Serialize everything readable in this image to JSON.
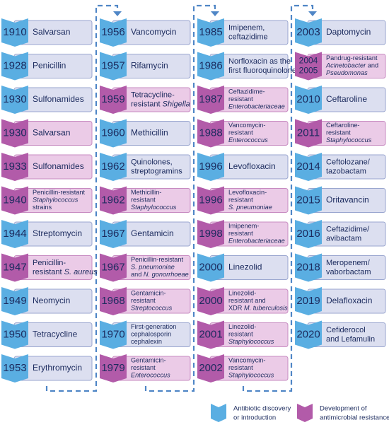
{
  "legend": [
    {
      "label": [
        "Antibiotic discovery",
        "or introduction"
      ],
      "color": "#5aaee2",
      "box_color": "#dcdff0",
      "box_stroke": "#9aa6cf"
    },
    {
      "label": [
        "Development of",
        "antimicrobial resistance"
      ],
      "color": "#b25ba9",
      "box_color": "#ebcbe7",
      "box_stroke": "#c78bc1"
    }
  ],
  "columns": [
    {
      "entries": [
        {
          "year": "1910",
          "kind": 0,
          "label": [
            [
              "Salvarsan"
            ]
          ]
        },
        {
          "year": "1928",
          "kind": 0,
          "label": [
            [
              "Penicillin"
            ]
          ]
        },
        {
          "year": "1930",
          "kind": 0,
          "label": [
            [
              "Sulfonamides"
            ]
          ]
        },
        {
          "year": "1930",
          "kind": 1,
          "label": [
            [
              "Salvarsan"
            ]
          ]
        },
        {
          "year": "1933",
          "kind": 1,
          "label": [
            [
              "Sulfonamides"
            ]
          ]
        },
        {
          "year": "1940",
          "kind": 1,
          "label": [
            [
              "Penicillin-resistant"
            ],
            [
              {
                "text": "Staphylococcus",
                "italic": true
              }
            ],
            [
              "strains"
            ]
          ]
        },
        {
          "year": "1944",
          "kind": 0,
          "label": [
            [
              "Streptomycin"
            ]
          ]
        },
        {
          "year": "1947",
          "kind": 1,
          "label": [
            [
              "Penicillin-"
            ],
            [
              "resistant ",
              {
                "text": "S. aureus",
                "italic": true
              }
            ]
          ]
        },
        {
          "year": "1949",
          "kind": 0,
          "label": [
            [
              "Neomycin"
            ]
          ]
        },
        {
          "year": "1950",
          "kind": 0,
          "label": [
            [
              "Tetracycline"
            ]
          ]
        },
        {
          "year": "1953",
          "kind": 0,
          "label": [
            [
              "Erythromycin"
            ]
          ]
        }
      ]
    },
    {
      "entries": [
        {
          "year": "1956",
          "kind": 0,
          "label": [
            [
              "Vancomycin"
            ]
          ]
        },
        {
          "year": "1957",
          "kind": 0,
          "label": [
            [
              "Rifamycin"
            ]
          ]
        },
        {
          "year": "1959",
          "kind": 1,
          "label": [
            [
              "Tetracycline-"
            ],
            [
              "resistant ",
              {
                "text": "Shigella",
                "italic": true
              }
            ]
          ]
        },
        {
          "year": "1960",
          "kind": 0,
          "label": [
            [
              "Methicillin"
            ]
          ]
        },
        {
          "year": "1962",
          "kind": 0,
          "label": [
            [
              "Quinolones,"
            ],
            [
              "streptogramins"
            ]
          ]
        },
        {
          "year": "1962",
          "kind": 1,
          "label": [
            [
              "Methicillin-"
            ],
            [
              "resistant"
            ],
            [
              {
                "text": "Staphylococcus",
                "italic": true
              }
            ]
          ]
        },
        {
          "year": "1967",
          "kind": 0,
          "label": [
            [
              "Gentamicin"
            ]
          ]
        },
        {
          "year": "1967",
          "kind": 1,
          "label": [
            [
              "Penicillin-resistant"
            ],
            [
              {
                "text": "S. pneumoniae",
                "italic": true
              }
            ],
            [
              "and ",
              {
                "text": "N. gonorrhoeae",
                "italic": true
              }
            ]
          ]
        },
        {
          "year": "1968",
          "kind": 1,
          "label": [
            [
              "Gentamicin-"
            ],
            [
              "resistant"
            ],
            [
              {
                "text": "Streptococcus",
                "italic": true
              }
            ]
          ]
        },
        {
          "year": "1970",
          "kind": 0,
          "label": [
            [
              "First-generation"
            ],
            [
              "cephalosporin"
            ],
            [
              "cephalexin"
            ]
          ]
        },
        {
          "year": "1979",
          "kind": 1,
          "label": [
            [
              "Gentamicin-"
            ],
            [
              "resistant"
            ],
            [
              {
                "text": "Enterococcus",
                "italic": true
              }
            ]
          ]
        }
      ]
    },
    {
      "entries": [
        {
          "year": "1985",
          "kind": 0,
          "label": [
            [
              "Imipenem,"
            ],
            [
              "ceftazidime"
            ]
          ]
        },
        {
          "year": "1986",
          "kind": 0,
          "label": [
            [
              "Norfloxacin as the"
            ],
            [
              "first fluoroquinolone"
            ]
          ]
        },
        {
          "year": "1987",
          "kind": 1,
          "label": [
            [
              "Ceftazidime-"
            ],
            [
              "resistant"
            ],
            [
              {
                "text": "Enterobacteriaceae",
                "italic": true
              }
            ]
          ]
        },
        {
          "year": "1988",
          "kind": 1,
          "label": [
            [
              "Vancomycin-"
            ],
            [
              "resistant"
            ],
            [
              {
                "text": "Enterococcus",
                "italic": true
              }
            ]
          ]
        },
        {
          "year": "1996",
          "kind": 0,
          "label": [
            [
              "Levofloxacin"
            ]
          ]
        },
        {
          "year": "1996",
          "kind": 1,
          "label": [
            [
              "Levofloxacin-"
            ],
            [
              "resistant"
            ],
            [
              {
                "text": "S. pneumoniae",
                "italic": true
              }
            ]
          ]
        },
        {
          "year": "1998",
          "kind": 1,
          "label": [
            [
              "Imipenem-"
            ],
            [
              "resistant"
            ],
            [
              {
                "text": "Enterobacteriaceae",
                "italic": true
              }
            ]
          ]
        },
        {
          "year": "2000",
          "kind": 0,
          "label": [
            [
              "Linezolid"
            ]
          ]
        },
        {
          "year": "2000",
          "kind": 1,
          "label": [
            [
              "Linezolid-"
            ],
            [
              "resistant and"
            ],
            [
              "XDR ",
              {
                "text": "M. tuberculosis",
                "italic": true
              }
            ]
          ]
        },
        {
          "year": "2001",
          "kind": 1,
          "label": [
            [
              "Linezolid-"
            ],
            [
              "resistant"
            ],
            [
              {
                "text": "Staphylococcus",
                "italic": true
              }
            ]
          ]
        },
        {
          "year": "2002",
          "kind": 1,
          "label": [
            [
              "Vancomycin-"
            ],
            [
              "resistant"
            ],
            [
              {
                "text": "Staphylococcus",
                "italic": true
              }
            ]
          ]
        }
      ]
    },
    {
      "entries": [
        {
          "year": "2003",
          "kind": 0,
          "label": [
            [
              "Daptomycin"
            ]
          ]
        },
        {
          "year": [
            "2004",
            "2005"
          ],
          "kind": 1,
          "label": [
            [
              "Pandrug-resistant"
            ],
            [
              {
                "text": "Acinetobacter",
                "italic": true
              },
              " and"
            ],
            [
              {
                "text": "Pseudomonas",
                "italic": true
              }
            ]
          ]
        },
        {
          "year": "2010",
          "kind": 0,
          "label": [
            [
              "Ceftaroline"
            ]
          ]
        },
        {
          "year": "2011",
          "kind": 1,
          "label": [
            [
              "Ceftaroline-"
            ],
            [
              "resistant"
            ],
            [
              {
                "text": "Staphylococcus",
                "italic": true
              }
            ]
          ]
        },
        {
          "year": "2014",
          "kind": 0,
          "label": [
            [
              "Ceftolozane/"
            ],
            [
              "tazobactam"
            ]
          ]
        },
        {
          "year": "2015",
          "kind": 0,
          "label": [
            [
              "Oritavancin"
            ]
          ]
        },
        {
          "year": "2016",
          "kind": 0,
          "label": [
            [
              "Ceftazidime/"
            ],
            [
              "avibactam"
            ]
          ]
        },
        {
          "year": "2018",
          "kind": 0,
          "label": [
            [
              "Meropenem/"
            ],
            [
              "vaborbactam"
            ]
          ]
        },
        {
          "year": "2019",
          "kind": 0,
          "label": [
            [
              "Delafloxacin"
            ]
          ]
        },
        {
          "year": "2020",
          "kind": 0,
          "label": [
            [
              "Cefiderocol"
            ],
            [
              "and Lefamulin"
            ]
          ]
        }
      ]
    }
  ]
}
